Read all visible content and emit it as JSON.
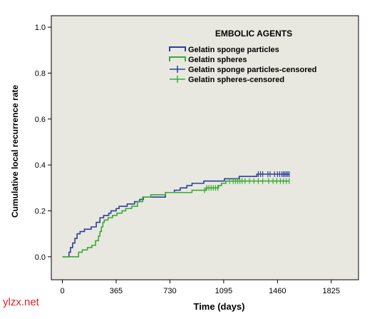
{
  "chart_data": {
    "type": "line",
    "subtype": "kaplan-meier-cumulative-incidence",
    "xlabel": "Time (days)",
    "ylabel": "Cumulative local recurrence rate",
    "xlim": [
      -75,
      2010
    ],
    "ylim": [
      -0.1,
      1.05
    ],
    "x_ticks": [
      0,
      365,
      730,
      1095,
      1460,
      1825
    ],
    "y_ticks": [
      "0.0",
      "0.2",
      "0.4",
      "0.6",
      "0.8",
      "1.0"
    ],
    "grid": false,
    "background": "#e8e8e0",
    "legend": {
      "title": "EMBOLIC AGENTS",
      "position": "top-right",
      "entries": [
        {
          "label": "Gelatin sponge particles",
          "kind": "line",
          "color": "#2e3f9a"
        },
        {
          "label": "Gelatin spheres",
          "kind": "line",
          "color": "#3aaa35"
        },
        {
          "label": "Gelatin sponge particles-censored",
          "kind": "censor",
          "color": "#2e3f9a"
        },
        {
          "label": "Gelatin spheres-censored",
          "kind": "censor",
          "color": "#3aaa35"
        }
      ]
    },
    "series": [
      {
        "color": "#2e3f9a",
        "steps": [
          [
            0,
            0
          ],
          [
            35,
            0
          ],
          [
            45,
            0.02
          ],
          [
            55,
            0.04
          ],
          [
            70,
            0.06
          ],
          [
            85,
            0.08
          ],
          [
            100,
            0.1
          ],
          [
            120,
            0.11
          ],
          [
            150,
            0.12
          ],
          [
            195,
            0.13
          ],
          [
            230,
            0.15
          ],
          [
            255,
            0.17
          ],
          [
            280,
            0.18
          ],
          [
            315,
            0.19
          ],
          [
            330,
            0.2
          ],
          [
            365,
            0.21
          ],
          [
            385,
            0.22
          ],
          [
            440,
            0.23
          ],
          [
            490,
            0.24
          ],
          [
            525,
            0.25
          ],
          [
            550,
            0.26
          ],
          [
            700,
            0.28
          ],
          [
            760,
            0.29
          ],
          [
            800,
            0.3
          ],
          [
            845,
            0.31
          ],
          [
            880,
            0.32
          ],
          [
            960,
            0.33
          ],
          [
            1100,
            0.34
          ],
          [
            1200,
            0.35
          ],
          [
            1320,
            0.36
          ],
          [
            1540,
            0.36
          ]
        ],
        "censored": [
          1330,
          1345,
          1360,
          1395,
          1410,
          1440,
          1460,
          1475,
          1490,
          1500,
          1510,
          1520,
          1530,
          1540
        ]
      },
      {
        "color": "#3aaa35",
        "steps": [
          [
            0,
            0
          ],
          [
            95,
            0
          ],
          [
            110,
            0.02
          ],
          [
            135,
            0.03
          ],
          [
            170,
            0.04
          ],
          [
            200,
            0.05
          ],
          [
            225,
            0.07
          ],
          [
            245,
            0.09
          ],
          [
            255,
            0.11
          ],
          [
            265,
            0.13
          ],
          [
            275,
            0.15
          ],
          [
            285,
            0.16
          ],
          [
            310,
            0.17
          ],
          [
            340,
            0.18
          ],
          [
            370,
            0.19
          ],
          [
            405,
            0.2
          ],
          [
            430,
            0.21
          ],
          [
            470,
            0.22
          ],
          [
            510,
            0.24
          ],
          [
            545,
            0.26
          ],
          [
            600,
            0.27
          ],
          [
            700,
            0.28
          ],
          [
            880,
            0.29
          ],
          [
            975,
            0.3
          ],
          [
            1060,
            0.31
          ],
          [
            1080,
            0.32
          ],
          [
            1110,
            0.33
          ],
          [
            1540,
            0.33
          ]
        ],
        "censored": [
          965,
          980,
          995,
          1010,
          1025,
          1040,
          1055,
          1135,
          1160,
          1175,
          1190,
          1205,
          1220,
          1240,
          1270,
          1300,
          1330,
          1360,
          1400,
          1430,
          1455,
          1480,
          1500,
          1520,
          1540
        ]
      }
    ]
  },
  "watermark": "ylzx.net"
}
